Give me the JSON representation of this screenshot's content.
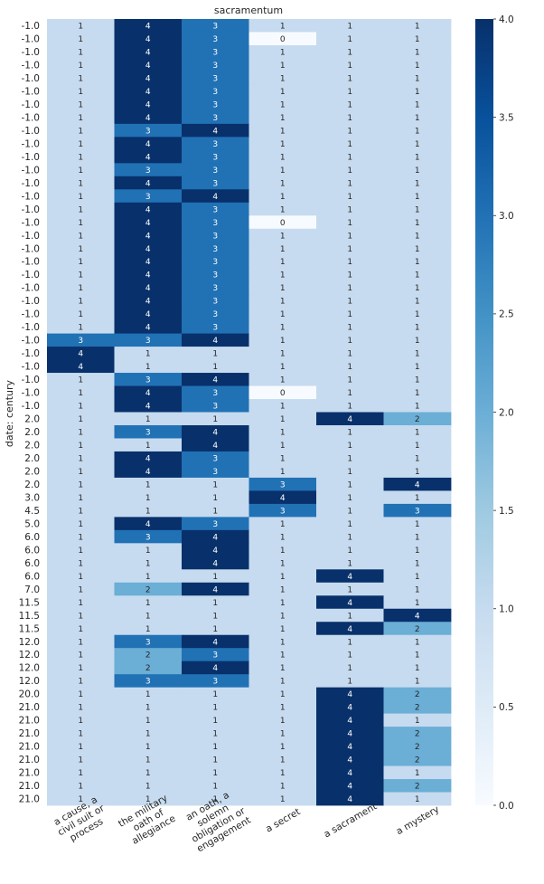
{
  "chart_data": {
    "type": "heatmap",
    "title": "sacramentum",
    "xlabel": "",
    "ylabel": "date: century",
    "columns": [
      [
        "a cause, a",
        "civil suit or",
        "process"
      ],
      [
        "the military",
        "oath of",
        "allegiance"
      ],
      [
        "an oath, a",
        "solemn",
        "obligation or",
        "engagement"
      ],
      [
        "a secret"
      ],
      [
        "a sacrament"
      ],
      [
        "a mystery"
      ]
    ],
    "rows": [
      "-1.0",
      "-1.0",
      "-1.0",
      "-1.0",
      "-1.0",
      "-1.0",
      "-1.0",
      "-1.0",
      "-1.0",
      "-1.0",
      "-1.0",
      "-1.0",
      "-1.0",
      "-1.0",
      "-1.0",
      "-1.0",
      "-1.0",
      "-1.0",
      "-1.0",
      "-1.0",
      "-1.0",
      "-1.0",
      "-1.0",
      "-1.0",
      "-1.0",
      "-1.0",
      "-1.0",
      "-1.0",
      "-1.0",
      "-1.0",
      "2.0",
      "2.0",
      "2.0",
      "2.0",
      "2.0",
      "2.0",
      "3.0",
      "4.5",
      "5.0",
      "6.0",
      "6.0",
      "6.0",
      "6.0",
      "7.0",
      "11.5",
      "11.5",
      "11.5",
      "12.0",
      "12.0",
      "12.0",
      "12.0",
      "20.0",
      "21.0",
      "21.0",
      "21.0",
      "21.0",
      "21.0",
      "21.0",
      "21.0",
      "21.0"
    ],
    "values": [
      [
        1,
        4,
        3,
        1,
        1,
        1
      ],
      [
        1,
        4,
        3,
        0,
        1,
        1
      ],
      [
        1,
        4,
        3,
        1,
        1,
        1
      ],
      [
        1,
        4,
        3,
        1,
        1,
        1
      ],
      [
        1,
        4,
        3,
        1,
        1,
        1
      ],
      [
        1,
        4,
        3,
        1,
        1,
        1
      ],
      [
        1,
        4,
        3,
        1,
        1,
        1
      ],
      [
        1,
        4,
        3,
        1,
        1,
        1
      ],
      [
        1,
        3,
        4,
        1,
        1,
        1
      ],
      [
        1,
        4,
        3,
        1,
        1,
        1
      ],
      [
        1,
        4,
        3,
        1,
        1,
        1
      ],
      [
        1,
        3,
        3,
        1,
        1,
        1
      ],
      [
        1,
        4,
        3,
        1,
        1,
        1
      ],
      [
        1,
        3,
        4,
        1,
        1,
        1
      ],
      [
        1,
        4,
        3,
        1,
        1,
        1
      ],
      [
        1,
        4,
        3,
        0,
        1,
        1
      ],
      [
        1,
        4,
        3,
        1,
        1,
        1
      ],
      [
        1,
        4,
        3,
        1,
        1,
        1
      ],
      [
        1,
        4,
        3,
        1,
        1,
        1
      ],
      [
        1,
        4,
        3,
        1,
        1,
        1
      ],
      [
        1,
        4,
        3,
        1,
        1,
        1
      ],
      [
        1,
        4,
        3,
        1,
        1,
        1
      ],
      [
        1,
        4,
        3,
        1,
        1,
        1
      ],
      [
        1,
        4,
        3,
        1,
        1,
        1
      ],
      [
        3,
        3,
        4,
        1,
        1,
        1
      ],
      [
        4,
        1,
        1,
        1,
        1,
        1
      ],
      [
        4,
        1,
        1,
        1,
        1,
        1
      ],
      [
        1,
        3,
        4,
        1,
        1,
        1
      ],
      [
        1,
        4,
        3,
        0,
        1,
        1
      ],
      [
        1,
        4,
        3,
        1,
        1,
        1
      ],
      [
        1,
        1,
        1,
        1,
        4,
        2
      ],
      [
        1,
        3,
        4,
        1,
        1,
        1
      ],
      [
        1,
        1,
        4,
        1,
        1,
        1
      ],
      [
        1,
        4,
        3,
        1,
        1,
        1
      ],
      [
        1,
        4,
        3,
        1,
        1,
        1
      ],
      [
        1,
        1,
        1,
        3,
        1,
        4
      ],
      [
        1,
        1,
        1,
        4,
        1,
        1
      ],
      [
        1,
        1,
        1,
        3,
        1,
        3
      ],
      [
        1,
        4,
        3,
        1,
        1,
        1
      ],
      [
        1,
        3,
        4,
        1,
        1,
        1
      ],
      [
        1,
        1,
        4,
        1,
        1,
        1
      ],
      [
        1,
        1,
        4,
        1,
        1,
        1
      ],
      [
        1,
        1,
        1,
        1,
        4,
        1
      ],
      [
        1,
        2,
        4,
        1,
        1,
        1
      ],
      [
        1,
        1,
        1,
        1,
        4,
        1
      ],
      [
        1,
        1,
        1,
        1,
        1,
        4
      ],
      [
        1,
        1,
        1,
        1,
        4,
        2
      ],
      [
        1,
        3,
        4,
        1,
        1,
        1
      ],
      [
        1,
        2,
        3,
        1,
        1,
        1
      ],
      [
        1,
        2,
        4,
        1,
        1,
        1
      ],
      [
        1,
        3,
        3,
        1,
        1,
        1
      ],
      [
        1,
        1,
        1,
        1,
        4,
        2
      ],
      [
        1,
        1,
        1,
        1,
        4,
        2
      ],
      [
        1,
        1,
        1,
        1,
        4,
        1
      ],
      [
        1,
        1,
        1,
        1,
        4,
        2
      ],
      [
        1,
        1,
        1,
        1,
        4,
        2
      ],
      [
        1,
        1,
        1,
        1,
        4,
        2
      ],
      [
        1,
        1,
        1,
        1,
        4,
        1
      ],
      [
        1,
        1,
        1,
        1,
        4,
        2
      ],
      [
        1,
        1,
        1,
        1,
        4,
        1
      ]
    ],
    "vmin": 0,
    "vmax": 4,
    "colorbar_ticks": [
      "0.0",
      "0.5",
      "1.0",
      "1.5",
      "2.0",
      "2.5",
      "3.0",
      "3.5",
      "4.0"
    ],
    "colormap": "Blues",
    "colormap_stops": [
      "#f7fbff",
      "#deebf7",
      "#c6dbef",
      "#9ecae1",
      "#6baed6",
      "#4292c6",
      "#2171b5",
      "#08519c",
      "#08306b"
    ],
    "grid": false,
    "legend": "colorbar-right"
  }
}
